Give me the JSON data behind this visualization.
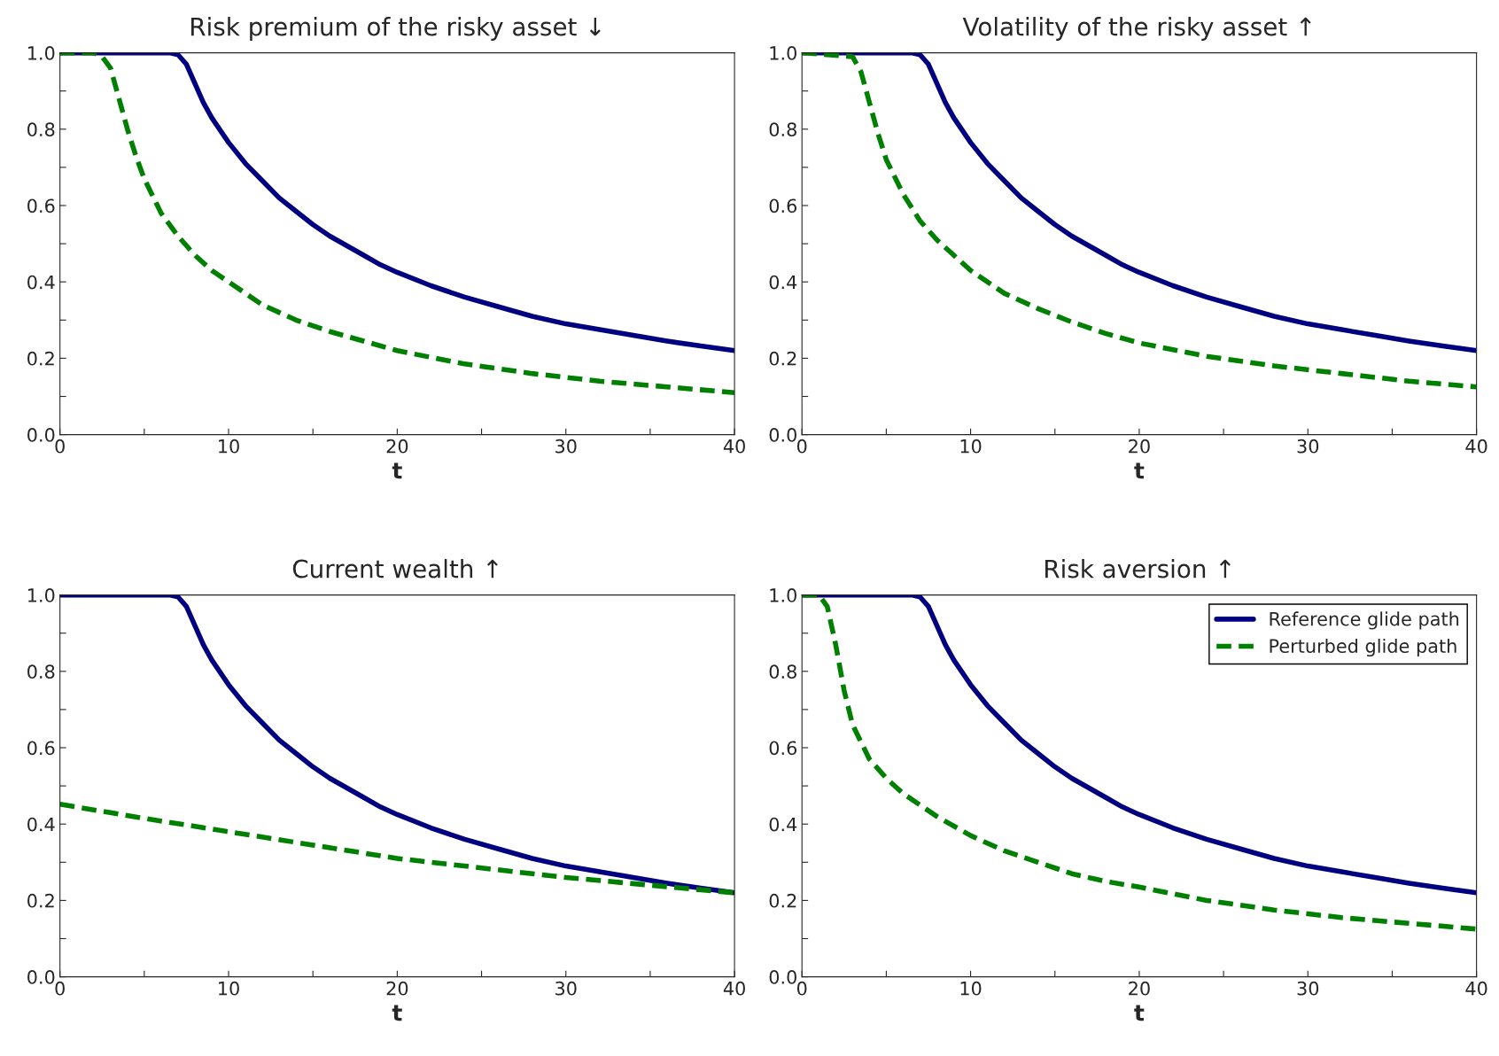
{
  "chart_data": [
    {
      "type": "line",
      "title": "Risk premium of the risky asset ↓",
      "xlabel": "t",
      "xlim": [
        0,
        40
      ],
      "ylim": [
        0,
        1
      ],
      "xticks": [
        0,
        {
          "value": 5,
          "label": null
        },
        10,
        {
          "value": 15,
          "label": null
        },
        20,
        {
          "value": 25,
          "label": null
        },
        30,
        {
          "value": 35,
          "label": null
        },
        40
      ],
      "yticks": [
        "0.0",
        {
          "value": 0.1,
          "label": null
        },
        {
          "value": 0.2,
          "label": "0.2"
        },
        {
          "value": 0.3,
          "label": null
        },
        {
          "value": 0.4,
          "label": "0.4"
        },
        {
          "value": 0.5,
          "label": null
        },
        {
          "value": 0.6,
          "label": "0.6"
        },
        {
          "value": 0.7,
          "label": null
        },
        {
          "value": 0.8,
          "label": "0.8"
        },
        {
          "value": 0.9,
          "label": null
        },
        {
          "value": 1,
          "label": "1.0"
        }
      ],
      "grid": false,
      "legend": false,
      "series": [
        {
          "color": "#000080",
          "line_style": "solid",
          "x": [
            0,
            6.5,
            7,
            7.5,
            8,
            8.5,
            9,
            10,
            11,
            12,
            13,
            14,
            15,
            16,
            17,
            18,
            19,
            20,
            22,
            24,
            26,
            28,
            30,
            32,
            34,
            36,
            38,
            40
          ],
          "values": [
            1.0,
            1.0,
            0.995,
            0.97,
            0.92,
            0.87,
            0.83,
            0.765,
            0.71,
            0.665,
            0.62,
            0.585,
            0.55,
            0.52,
            0.495,
            0.47,
            0.445,
            0.425,
            0.39,
            0.36,
            0.335,
            0.31,
            0.29,
            0.275,
            0.26,
            0.245,
            0.232,
            0.22
          ]
        },
        {
          "color": "#008000",
          "line_style": "dashed",
          "x": [
            0,
            2,
            2.5,
            3,
            3.5,
            4,
            4.5,
            5,
            6,
            7,
            8,
            9,
            10,
            12,
            14,
            16,
            18,
            20,
            24,
            28,
            32,
            36,
            40
          ],
          "values": [
            1.0,
            1.0,
            0.99,
            0.96,
            0.88,
            0.8,
            0.73,
            0.67,
            0.58,
            0.52,
            0.47,
            0.43,
            0.4,
            0.34,
            0.3,
            0.27,
            0.245,
            0.22,
            0.185,
            0.16,
            0.14,
            0.125,
            0.11
          ]
        }
      ]
    },
    {
      "type": "line",
      "title": "Volatility of the risky asset ↑",
      "xlabel": "t",
      "xlim": [
        0,
        40
      ],
      "ylim": [
        0,
        1
      ],
      "xticks": [
        0,
        {
          "value": 5,
          "label": null
        },
        10,
        {
          "value": 15,
          "label": null
        },
        20,
        {
          "value": 25,
          "label": null
        },
        30,
        {
          "value": 35,
          "label": null
        },
        40
      ],
      "yticks": [
        {
          "value": 0,
          "label": "0.0"
        },
        {
          "value": 0.1,
          "label": null
        },
        {
          "value": 0.2,
          "label": "0.2"
        },
        {
          "value": 0.3,
          "label": null
        },
        {
          "value": 0.4,
          "label": "0.4"
        },
        {
          "value": 0.5,
          "label": null
        },
        {
          "value": 0.6,
          "label": "0.6"
        },
        {
          "value": 0.7,
          "label": null
        },
        {
          "value": 0.8,
          "label": "0.8"
        },
        {
          "value": 0.9,
          "label": null
        },
        {
          "value": 1,
          "label": "1.0"
        }
      ],
      "grid": false,
      "legend": false,
      "series": [
        {
          "color": "#000080",
          "line_style": "solid",
          "x": [
            0,
            6.5,
            7,
            7.5,
            8,
            8.5,
            9,
            10,
            11,
            12,
            13,
            14,
            15,
            16,
            17,
            18,
            19,
            20,
            22,
            24,
            26,
            28,
            30,
            32,
            34,
            36,
            38,
            40
          ],
          "values": [
            1.0,
            1.0,
            0.995,
            0.97,
            0.92,
            0.87,
            0.83,
            0.765,
            0.71,
            0.665,
            0.62,
            0.585,
            0.55,
            0.52,
            0.495,
            0.47,
            0.445,
            0.425,
            0.39,
            0.36,
            0.335,
            0.31,
            0.29,
            0.275,
            0.26,
            0.245,
            0.232,
            0.22
          ]
        },
        {
          "color": "#008000",
          "line_style": "dashed",
          "x": [
            0,
            3,
            3.5,
            4,
            4.5,
            5,
            6,
            7,
            8,
            9,
            10,
            12,
            14,
            16,
            18,
            20,
            24,
            28,
            32,
            36,
            40
          ],
          "values": [
            1.0,
            0.99,
            0.95,
            0.87,
            0.79,
            0.72,
            0.63,
            0.56,
            0.51,
            0.47,
            0.43,
            0.37,
            0.33,
            0.295,
            0.265,
            0.24,
            0.205,
            0.18,
            0.16,
            0.14,
            0.125
          ]
        }
      ]
    },
    {
      "type": "line",
      "title": "Current wealth ↑",
      "xlabel": "t",
      "xlim": [
        0,
        40
      ],
      "ylim": [
        0,
        1
      ],
      "xticks": [
        0,
        {
          "value": 5,
          "label": null
        },
        10,
        {
          "value": 15,
          "label": null
        },
        20,
        {
          "value": 25,
          "label": null
        },
        30,
        {
          "value": 35,
          "label": null
        },
        40
      ],
      "yticks": [
        {
          "value": 0,
          "label": "0.0"
        },
        {
          "value": 0.1,
          "label": null
        },
        {
          "value": 0.2,
          "label": "0.2"
        },
        {
          "value": 0.3,
          "label": null
        },
        {
          "value": 0.4,
          "label": "0.4"
        },
        {
          "value": 0.5,
          "label": null
        },
        {
          "value": 0.6,
          "label": "0.6"
        },
        {
          "value": 0.7,
          "label": null
        },
        {
          "value": 0.8,
          "label": "0.8"
        },
        {
          "value": 0.9,
          "label": null
        },
        {
          "value": 1,
          "label": "1.0"
        }
      ],
      "grid": false,
      "legend": false,
      "series": [
        {
          "color": "#000080",
          "line_style": "solid",
          "x": [
            0,
            6.5,
            7,
            7.5,
            8,
            8.5,
            9,
            10,
            11,
            12,
            13,
            14,
            15,
            16,
            17,
            18,
            19,
            20,
            22,
            24,
            26,
            28,
            30,
            32,
            34,
            36,
            38,
            40
          ],
          "values": [
            1.0,
            1.0,
            0.995,
            0.97,
            0.92,
            0.87,
            0.83,
            0.765,
            0.71,
            0.665,
            0.62,
            0.585,
            0.55,
            0.52,
            0.495,
            0.47,
            0.445,
            0.425,
            0.39,
            0.36,
            0.335,
            0.31,
            0.29,
            0.275,
            0.26,
            0.245,
            0.232,
            0.22
          ]
        },
        {
          "color": "#008000",
          "line_style": "dashed",
          "x": [
            0,
            5,
            10,
            15,
            20,
            25,
            30,
            35,
            40
          ],
          "values": [
            0.452,
            0.415,
            0.38,
            0.345,
            0.31,
            0.285,
            0.26,
            0.24,
            0.22
          ]
        }
      ]
    },
    {
      "type": "line",
      "title": "Risk aversion ↑",
      "xlabel": "t",
      "xlim": [
        0,
        40
      ],
      "ylim": [
        0,
        1
      ],
      "xticks": [
        0,
        {
          "value": 5,
          "label": null
        },
        10,
        {
          "value": 15,
          "label": null
        },
        20,
        {
          "value": 25,
          "label": null
        },
        30,
        {
          "value": 35,
          "label": null
        },
        40
      ],
      "yticks": [
        {
          "value": 0,
          "label": "0.0"
        },
        {
          "value": 0.1,
          "label": null
        },
        {
          "value": 0.2,
          "label": "0.2"
        },
        {
          "value": 0.3,
          "label": null
        },
        {
          "value": 0.4,
          "label": "0.4"
        },
        {
          "value": 0.5,
          "label": null
        },
        {
          "value": 0.6,
          "label": "0.6"
        },
        {
          "value": 0.7,
          "label": null
        },
        {
          "value": 0.8,
          "label": "0.8"
        },
        {
          "value": 0.9,
          "label": null
        },
        {
          "value": 1,
          "label": "1.0"
        }
      ],
      "grid": false,
      "legend": "top right",
      "series": [
        {
          "name": "Reference glide path",
          "color": "#000080",
          "line_style": "solid",
          "x": [
            0,
            6.5,
            7,
            7.5,
            8,
            8.5,
            9,
            10,
            11,
            12,
            13,
            14,
            15,
            16,
            17,
            18,
            19,
            20,
            22,
            24,
            26,
            28,
            30,
            32,
            34,
            36,
            38,
            40
          ],
          "values": [
            1.0,
            1.0,
            0.995,
            0.97,
            0.92,
            0.87,
            0.83,
            0.765,
            0.71,
            0.665,
            0.62,
            0.585,
            0.55,
            0.52,
            0.495,
            0.47,
            0.445,
            0.425,
            0.39,
            0.36,
            0.335,
            0.31,
            0.29,
            0.275,
            0.26,
            0.245,
            0.232,
            0.22
          ]
        },
        {
          "name": "Perturbed glide path",
          "color": "#008000",
          "line_style": "dashed",
          "x": [
            0,
            1,
            1.5,
            2,
            2.5,
            3,
            4,
            5,
            6,
            7,
            8,
            10,
            12,
            14,
            16,
            18,
            20,
            24,
            28,
            32,
            36,
            40
          ],
          "values": [
            1.0,
            1.0,
            0.97,
            0.87,
            0.75,
            0.66,
            0.57,
            0.52,
            0.48,
            0.45,
            0.42,
            0.37,
            0.33,
            0.3,
            0.27,
            0.25,
            0.235,
            0.2,
            0.175,
            0.155,
            0.14,
            0.125
          ]
        }
      ]
    }
  ]
}
